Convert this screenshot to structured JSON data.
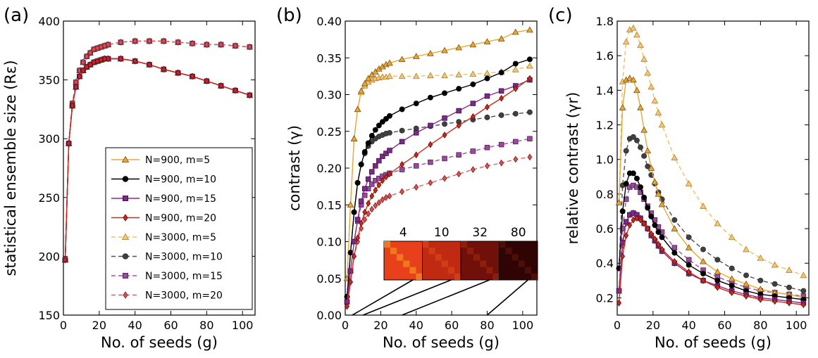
{
  "chart_data": [
    {
      "panel_label": "(a)",
      "type": "line",
      "xlabel": "No. of seeds (g)",
      "ylabel": "statistical ensemble size (Rε)",
      "xlim": [
        0,
        107
      ],
      "ylim": [
        150,
        400
      ],
      "xticks": [
        0,
        20,
        40,
        60,
        80,
        100
      ],
      "yticks": [
        150,
        200,
        250,
        300,
        350,
        400
      ],
      "legend": "inside lower-right",
      "series_groups": [
        {
          "series": [
            "N=900, m=5",
            "N=900, m=10",
            "N=900, m=15",
            "N=900, m=20"
          ],
          "x": [
            1,
            3,
            5,
            7,
            9,
            11,
            13,
            15,
            17,
            19,
            21,
            23,
            25,
            32,
            40,
            48,
            56,
            64,
            72,
            80,
            88,
            96,
            104
          ],
          "y": [
            197,
            296,
            328,
            344,
            353,
            358,
            361,
            363,
            365,
            366,
            367,
            368,
            368,
            368,
            366,
            363,
            359,
            356,
            353,
            349,
            345,
            341,
            337
          ]
        },
        {
          "series": [
            "N=3000, m=5",
            "N=3000, m=10",
            "N=3000, m=15",
            "N=3000, m=20"
          ],
          "x": [
            1,
            3,
            5,
            7,
            9,
            11,
            13,
            15,
            17,
            19,
            21,
            23,
            25,
            32,
            40,
            48,
            56,
            64,
            72,
            80,
            88,
            96,
            104
          ],
          "y": [
            197,
            296,
            330,
            348,
            358,
            365,
            370,
            373,
            376,
            377,
            378,
            379,
            380,
            382,
            383,
            383,
            383,
            382,
            381,
            380,
            380,
            379,
            378
          ]
        }
      ]
    },
    {
      "panel_label": "(b)",
      "type": "line",
      "xlabel": "No. of seeds (g)",
      "ylabel": "contrast (γ)",
      "xlim": [
        0,
        108
      ],
      "ylim": [
        0,
        0.4
      ],
      "xticks": [
        0,
        20,
        40,
        60,
        80,
        100
      ],
      "yticks": [
        "0.00",
        "0.05",
        "0.10",
        "0.15",
        "0.20",
        "0.25",
        "0.30",
        "0.35",
        "0.40"
      ],
      "inset_labels": [
        "4",
        "10",
        "32",
        "80"
      ],
      "inset_g": [
        4,
        10,
        32,
        80
      ],
      "series": [
        {
          "name": "N=900, m=5",
          "x": [
            1,
            3,
            5,
            7,
            9,
            11,
            13,
            15,
            17,
            19,
            21,
            23,
            25,
            32,
            40,
            48,
            56,
            64,
            72,
            80,
            88,
            96,
            104
          ],
          "values": [
            0.05,
            0.15,
            0.24,
            0.28,
            0.305,
            0.315,
            0.322,
            0.327,
            0.331,
            0.335,
            0.338,
            0.341,
            0.343,
            0.348,
            0.352,
            0.356,
            0.36,
            0.364,
            0.368,
            0.372,
            0.376,
            0.385,
            0.388
          ]
        },
        {
          "name": "N=900, m=10",
          "x": [
            1,
            3,
            5,
            7,
            9,
            11,
            13,
            15,
            17,
            19,
            21,
            23,
            25,
            32,
            40,
            48,
            56,
            64,
            72,
            80,
            88,
            96,
            104
          ],
          "values": [
            0.025,
            0.085,
            0.14,
            0.18,
            0.205,
            0.222,
            0.234,
            0.244,
            0.252,
            0.258,
            0.263,
            0.267,
            0.271,
            0.28,
            0.288,
            0.296,
            0.302,
            0.308,
            0.314,
            0.322,
            0.33,
            0.342,
            0.348
          ]
        },
        {
          "name": "N=900, m=15",
          "x": [
            1,
            3,
            5,
            7,
            9,
            11,
            13,
            15,
            17,
            19,
            21,
            23,
            25,
            32,
            40,
            48,
            56,
            64,
            72,
            80,
            88,
            96,
            104
          ],
          "values": [
            0.018,
            0.06,
            0.1,
            0.13,
            0.155,
            0.172,
            0.185,
            0.195,
            0.203,
            0.21,
            0.216,
            0.22,
            0.224,
            0.236,
            0.248,
            0.258,
            0.268,
            0.278,
            0.288,
            0.298,
            0.305,
            0.312,
            0.32
          ]
        },
        {
          "name": "N=900, m=20",
          "x": [
            1,
            3,
            5,
            7,
            9,
            11,
            13,
            15,
            17,
            19,
            21,
            23,
            25,
            32,
            40,
            48,
            56,
            64,
            72,
            80,
            88,
            96,
            104
          ],
          "values": [
            0.012,
            0.045,
            0.08,
            0.105,
            0.125,
            0.14,
            0.152,
            0.162,
            0.17,
            0.177,
            0.183,
            0.188,
            0.192,
            0.205,
            0.218,
            0.232,
            0.245,
            0.258,
            0.27,
            0.283,
            0.295,
            0.308,
            0.322
          ]
        },
        {
          "name": "N=3000, m=5",
          "x": [
            1,
            3,
            5,
            7,
            9,
            11,
            13,
            15,
            17,
            19,
            21,
            23,
            25,
            32,
            40,
            48,
            56,
            64,
            72,
            80,
            88,
            96,
            104
          ],
          "values": [
            0.05,
            0.15,
            0.24,
            0.28,
            0.303,
            0.312,
            0.317,
            0.32,
            0.322,
            0.323,
            0.324,
            0.324,
            0.325,
            0.325,
            0.325,
            0.326,
            0.326,
            0.327,
            0.328,
            0.329,
            0.331,
            0.334,
            0.339
          ]
        },
        {
          "name": "N=3000, m=10",
          "x": [
            1,
            3,
            5,
            7,
            9,
            11,
            13,
            15,
            17,
            19,
            21,
            23,
            25,
            32,
            40,
            48,
            56,
            64,
            72,
            80,
            88,
            96,
            104
          ],
          "values": [
            0.025,
            0.085,
            0.14,
            0.18,
            0.205,
            0.22,
            0.23,
            0.236,
            0.24,
            0.243,
            0.245,
            0.247,
            0.248,
            0.251,
            0.254,
            0.257,
            0.26,
            0.263,
            0.266,
            0.269,
            0.272,
            0.274,
            0.276
          ]
        },
        {
          "name": "N=3000, m=15",
          "x": [
            1,
            3,
            5,
            7,
            9,
            11,
            13,
            15,
            17,
            19,
            21,
            23,
            25,
            32,
            40,
            48,
            56,
            64,
            72,
            80,
            88,
            96,
            104
          ],
          "values": [
            0.018,
            0.06,
            0.1,
            0.128,
            0.15,
            0.163,
            0.172,
            0.178,
            0.183,
            0.186,
            0.189,
            0.191,
            0.193,
            0.198,
            0.203,
            0.208,
            0.213,
            0.218,
            0.223,
            0.228,
            0.232,
            0.236,
            0.24
          ]
        },
        {
          "name": "N=3000, m=20",
          "x": [
            1,
            3,
            5,
            7,
            9,
            11,
            13,
            15,
            17,
            19,
            21,
            23,
            25,
            32,
            40,
            48,
            56,
            64,
            72,
            80,
            88,
            96,
            104
          ],
          "values": [
            0.012,
            0.045,
            0.08,
            0.1,
            0.118,
            0.13,
            0.138,
            0.144,
            0.149,
            0.153,
            0.157,
            0.16,
            0.162,
            0.168,
            0.174,
            0.18,
            0.186,
            0.192,
            0.198,
            0.203,
            0.207,
            0.212,
            0.215
          ]
        }
      ]
    },
    {
      "panel_label": "(c)",
      "type": "line",
      "xlabel": "No. of seeds (g)",
      "ylabel": "relative contrast (γr)",
      "xlim": [
        0,
        107
      ],
      "ylim": [
        0.1,
        1.8
      ],
      "xticks": [
        0,
        20,
        40,
        60,
        80,
        100
      ],
      "yticks": [
        "0.2",
        "0.4",
        "0.6",
        "0.8",
        "1.0",
        "1.2",
        "1.4",
        "1.6",
        "1.8"
      ],
      "series": [
        {
          "name": "N=900, m=5",
          "x": [
            1,
            3,
            5,
            7,
            9,
            11,
            13,
            15,
            17,
            19,
            21,
            23,
            25,
            32,
            40,
            48,
            56,
            64,
            72,
            80,
            88,
            96,
            104
          ],
          "values": [
            0.75,
            1.3,
            1.46,
            1.47,
            1.46,
            1.4,
            1.3,
            1.17,
            1.05,
            0.95,
            0.87,
            0.8,
            0.74,
            0.6,
            0.49,
            0.41,
            0.35,
            0.31,
            0.28,
            0.25,
            0.23,
            0.22,
            0.2
          ]
        },
        {
          "name": "N=900, m=10",
          "x": [
            1,
            3,
            5,
            7,
            9,
            11,
            13,
            15,
            17,
            19,
            21,
            23,
            25,
            32,
            40,
            48,
            56,
            64,
            72,
            80,
            88,
            96,
            104
          ],
          "values": [
            0.37,
            0.7,
            0.86,
            0.92,
            0.92,
            0.89,
            0.84,
            0.78,
            0.72,
            0.67,
            0.62,
            0.58,
            0.55,
            0.46,
            0.39,
            0.34,
            0.3,
            0.27,
            0.24,
            0.22,
            0.21,
            0.2,
            0.19
          ]
        },
        {
          "name": "N=900, m=15",
          "x": [
            1,
            3,
            5,
            7,
            9,
            11,
            13,
            15,
            17,
            19,
            21,
            23,
            25,
            32,
            40,
            48,
            56,
            64,
            72,
            80,
            88,
            96,
            104
          ],
          "values": [
            0.24,
            0.52,
            0.64,
            0.68,
            0.69,
            0.68,
            0.66,
            0.63,
            0.6,
            0.56,
            0.53,
            0.5,
            0.47,
            0.4,
            0.34,
            0.3,
            0.27,
            0.24,
            0.22,
            0.2,
            0.19,
            0.18,
            0.17
          ]
        },
        {
          "name": "N=900, m=20",
          "x": [
            1,
            3,
            5,
            7,
            9,
            11,
            13,
            15,
            17,
            19,
            21,
            23,
            25,
            32,
            40,
            48,
            56,
            64,
            72,
            80,
            88,
            96,
            104
          ],
          "values": [
            0.17,
            0.44,
            0.56,
            0.62,
            0.65,
            0.66,
            0.65,
            0.63,
            0.6,
            0.57,
            0.54,
            0.51,
            0.48,
            0.41,
            0.35,
            0.3,
            0.26,
            0.23,
            0.21,
            0.19,
            0.18,
            0.17,
            0.16
          ]
        },
        {
          "name": "N=3000, m=5",
          "x": [
            1,
            3,
            5,
            7,
            9,
            11,
            13,
            15,
            17,
            19,
            21,
            23,
            25,
            32,
            40,
            48,
            56,
            64,
            72,
            80,
            88,
            96,
            104
          ],
          "values": [
            0.75,
            1.45,
            1.68,
            1.75,
            1.76,
            1.72,
            1.66,
            1.58,
            1.5,
            1.42,
            1.34,
            1.27,
            1.2,
            1.01,
            0.86,
            0.73,
            0.63,
            0.55,
            0.48,
            0.43,
            0.39,
            0.36,
            0.33
          ]
        },
        {
          "name": "N=3000, m=10",
          "x": [
            1,
            3,
            5,
            7,
            9,
            11,
            13,
            15,
            17,
            19,
            21,
            23,
            25,
            32,
            40,
            48,
            56,
            64,
            72,
            80,
            88,
            96,
            104
          ],
          "values": [
            0.37,
            0.85,
            1.05,
            1.12,
            1.13,
            1.11,
            1.07,
            1.02,
            0.96,
            0.91,
            0.86,
            0.81,
            0.77,
            0.65,
            0.55,
            0.48,
            0.42,
            0.37,
            0.33,
            0.3,
            0.28,
            0.26,
            0.24
          ]
        },
        {
          "name": "N=3000, m=15",
          "x": [
            1,
            3,
            5,
            7,
            9,
            11,
            13,
            15,
            17,
            19,
            21,
            23,
            25,
            32,
            40,
            48,
            56,
            64,
            72,
            80,
            88,
            96,
            104
          ],
          "values": [
            0.24,
            0.6,
            0.77,
            0.84,
            0.85,
            0.84,
            0.81,
            0.77,
            0.73,
            0.69,
            0.65,
            0.61,
            0.58,
            0.49,
            0.42,
            0.36,
            0.32,
            0.29,
            0.26,
            0.24,
            0.23,
            0.22,
            0.21
          ]
        },
        {
          "name": "N=3000, m=20",
          "x": [
            1,
            3,
            5,
            7,
            9,
            11,
            13,
            15,
            17,
            19,
            21,
            23,
            25,
            32,
            40,
            48,
            56,
            64,
            72,
            80,
            88,
            96,
            104
          ],
          "values": [
            0.17,
            0.5,
            0.63,
            0.68,
            0.69,
            0.68,
            0.66,
            0.63,
            0.6,
            0.56,
            0.53,
            0.5,
            0.47,
            0.4,
            0.34,
            0.3,
            0.26,
            0.23,
            0.21,
            0.2,
            0.19,
            0.18,
            0.17
          ]
        }
      ]
    }
  ],
  "legend": [
    {
      "label": "N=900, m=5",
      "color": "#e8a838",
      "marker": "triangle",
      "dash": false
    },
    {
      "label": "N=900, m=10",
      "color": "#000000",
      "marker": "circle",
      "dash": false
    },
    {
      "label": "N=900, m=15",
      "color": "#8b2a8b",
      "marker": "square",
      "dash": false
    },
    {
      "label": "N=900, m=20",
      "color": "#d02818",
      "marker": "diamond",
      "dash": false
    },
    {
      "label": "N=3000, m=5",
      "color": "#f0c060",
      "marker": "triangle",
      "dash": true
    },
    {
      "label": "N=3000, m=10",
      "color": "#505050",
      "marker": "circle",
      "dash": true
    },
    {
      "label": "N=3000, m=15",
      "color": "#a050a0",
      "marker": "square",
      "dash": true
    },
    {
      "label": "N=3000, m=20",
      "color": "#e06060",
      "marker": "diamond",
      "dash": true
    }
  ],
  "fills": {
    "N=900, m=5": "#e8a838",
    "N=900, m=10": "#000000",
    "N=900, m=15": "#7a2a8a",
    "N=900, m=20": "#d02818",
    "N=3000, m=5": "#f2c878",
    "N=3000, m=10": "#404040",
    "N=3000, m=15": "#9a4a9a",
    "N=3000, m=20": "#d85050"
  },
  "edges": {
    "N=900, m=5": "#7a5010",
    "N=900, m=10": "#000000",
    "N=900, m=15": "#401040",
    "N=900, m=20": "#601010",
    "N=3000, m=5": "#b08030",
    "N=3000, m=10": "#303030",
    "N=3000, m=15": "#502050",
    "N=3000, m=20": "#802020"
  }
}
